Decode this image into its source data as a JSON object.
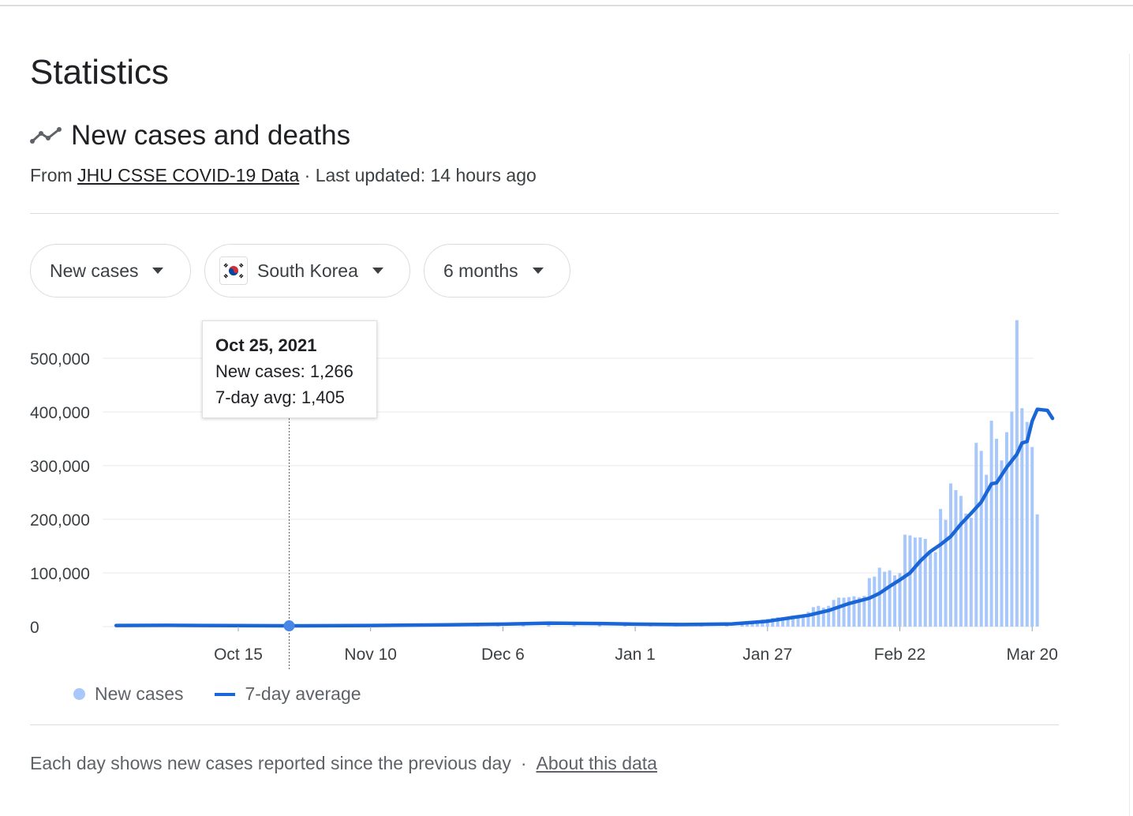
{
  "page": {
    "title": "Statistics",
    "subtitle": "New cases and deaths",
    "subtitle_icon": "trending-line-icon",
    "source_prefix": "From",
    "source_link": "JHU CSSE COVID-19 Data",
    "source_sep": "·",
    "last_updated": "Last updated: 14 hours ago"
  },
  "filters": {
    "metric": "New cases",
    "country": "South Korea",
    "country_flag_icon": "south-korea-flag-icon",
    "range": "6 months"
  },
  "tooltip": {
    "date": "Oct 25, 2021",
    "new_cases": "New cases: 1,266",
    "avg": "7-day avg: 1,405"
  },
  "legend": {
    "new_cases": "New cases",
    "avg": "7-day average"
  },
  "footer": {
    "note": "Each day shows new cases reported since the previous day",
    "sep": "·",
    "link": "About this data"
  },
  "colors": {
    "bar": "#a8c7fa",
    "line": "#1a66d6",
    "marker": "#4a86e8"
  },
  "chart_data": {
    "type": "bar",
    "x_start": "2021-09-21",
    "x_end": "2022-03-20",
    "x_ticks": [
      {
        "label": "Oct 15",
        "date": "2021-10-15"
      },
      {
        "label": "Nov 10",
        "date": "2021-11-10"
      },
      {
        "label": "Dec 6",
        "date": "2021-12-06"
      },
      {
        "label": "Jan 1",
        "date": "2022-01-01"
      },
      {
        "label": "Jan 27",
        "date": "2022-01-27"
      },
      {
        "label": "Feb 22",
        "date": "2022-02-22"
      },
      {
        "label": "Mar 20",
        "date": "2022-03-20"
      }
    ],
    "y_ticks": [
      0,
      100000,
      200000,
      300000,
      400000,
      500000
    ],
    "y_tick_labels": [
      "0",
      "100,000",
      "200,000",
      "300,000",
      "400,000",
      "500,000"
    ],
    "ylim": [
      0,
      570000
    ],
    "highlight": {
      "date": "2021-10-25",
      "new_cases": 1266,
      "avg": 1405
    },
    "series": [
      {
        "name": "New cases",
        "type": "bar",
        "points": [
          [
            "2021-12-01",
            4500
          ],
          [
            "2021-12-05",
            5100
          ],
          [
            "2021-12-10",
            6900
          ],
          [
            "2021-12-15",
            7800
          ],
          [
            "2021-12-20",
            5200
          ],
          [
            "2021-12-25",
            6200
          ],
          [
            "2021-12-30",
            5000
          ],
          [
            "2022-01-04",
            4400
          ],
          [
            "2022-01-09",
            3400
          ],
          [
            "2022-01-14",
            4500
          ],
          [
            "2022-01-19",
            5800
          ],
          [
            "2022-01-22",
            7000
          ],
          [
            "2022-01-23",
            7600
          ],
          [
            "2022-01-24",
            7500
          ],
          [
            "2022-01-25",
            8500
          ],
          [
            "2022-01-26",
            13000
          ],
          [
            "2022-01-27",
            14500
          ],
          [
            "2022-01-28",
            16100
          ],
          [
            "2022-01-29",
            17500
          ],
          [
            "2022-01-30",
            17100
          ],
          [
            "2022-01-31",
            18000
          ],
          [
            "2022-02-01",
            20300
          ],
          [
            "2022-02-02",
            20000
          ],
          [
            "2022-02-03",
            22900
          ],
          [
            "2022-02-04",
            27400
          ],
          [
            "2022-02-05",
            36300
          ],
          [
            "2022-02-06",
            38600
          ],
          [
            "2022-02-07",
            35300
          ],
          [
            "2022-02-08",
            38700
          ],
          [
            "2022-02-09",
            49600
          ],
          [
            "2022-02-10",
            54100
          ],
          [
            "2022-02-11",
            53900
          ],
          [
            "2022-02-12",
            54900
          ],
          [
            "2022-02-13",
            56400
          ],
          [
            "2022-02-14",
            54600
          ],
          [
            "2022-02-15",
            57100
          ],
          [
            "2022-02-16",
            90400
          ],
          [
            "2022-02-17",
            93100
          ],
          [
            "2022-02-18",
            109800
          ],
          [
            "2022-02-19",
            102200
          ],
          [
            "2022-02-20",
            104800
          ],
          [
            "2022-02-21",
            95400
          ],
          [
            "2022-02-22",
            99600
          ],
          [
            "2022-02-23",
            171400
          ],
          [
            "2022-02-24",
            170000
          ],
          [
            "2022-02-25",
            165900
          ],
          [
            "2022-02-26",
            166200
          ],
          [
            "2022-02-27",
            163500
          ],
          [
            "2022-02-28",
            139600
          ],
          [
            "2022-03-01",
            138900
          ],
          [
            "2022-03-02",
            219200
          ],
          [
            "2022-03-03",
            198800
          ],
          [
            "2022-03-04",
            266800
          ],
          [
            "2022-03-05",
            254300
          ],
          [
            "2022-03-06",
            243600
          ],
          [
            "2022-03-07",
            210700
          ],
          [
            "2022-03-08",
            202700
          ],
          [
            "2022-03-09",
            342400
          ],
          [
            "2022-03-10",
            327500
          ],
          [
            "2022-03-11",
            282900
          ],
          [
            "2022-03-12",
            383700
          ],
          [
            "2022-03-13",
            350100
          ],
          [
            "2022-03-14",
            309700
          ],
          [
            "2022-03-15",
            362300
          ],
          [
            "2022-03-16",
            400700
          ],
          [
            "2022-03-17",
            571000
          ],
          [
            "2022-03-18",
            407000
          ],
          [
            "2022-03-19",
            381400
          ],
          [
            "2022-03-20",
            334700
          ],
          [
            "2022-03-21",
            209200
          ]
        ]
      },
      {
        "name": "7-day average",
        "type": "line",
        "points": [
          [
            "2021-09-21",
            2000
          ],
          [
            "2021-10-01",
            2300
          ],
          [
            "2021-10-15",
            1700
          ],
          [
            "2021-10-25",
            1405
          ],
          [
            "2021-11-10",
            2100
          ],
          [
            "2021-11-25",
            3200
          ],
          [
            "2021-12-06",
            4600
          ],
          [
            "2021-12-15",
            6500
          ],
          [
            "2021-12-25",
            5800
          ],
          [
            "2022-01-01",
            4500
          ],
          [
            "2022-01-10",
            3800
          ],
          [
            "2022-01-20",
            5000
          ],
          [
            "2022-01-27",
            10000
          ],
          [
            "2022-02-01",
            17000
          ],
          [
            "2022-02-04",
            21000
          ],
          [
            "2022-02-08",
            30000
          ],
          [
            "2022-02-12",
            43000
          ],
          [
            "2022-02-16",
            53000
          ],
          [
            "2022-02-18",
            62000
          ],
          [
            "2022-02-20",
            75000
          ],
          [
            "2022-02-22",
            87000
          ],
          [
            "2022-02-24",
            100000
          ],
          [
            "2022-02-26",
            122000
          ],
          [
            "2022-02-28",
            140000
          ],
          [
            "2022-03-02",
            153000
          ],
          [
            "2022-03-04",
            168000
          ],
          [
            "2022-03-06",
            191000
          ],
          [
            "2022-03-08",
            211000
          ],
          [
            "2022-03-10",
            232000
          ],
          [
            "2022-03-12",
            266000
          ],
          [
            "2022-03-13",
            268000
          ],
          [
            "2022-03-15",
            297000
          ],
          [
            "2022-03-17",
            321000
          ],
          [
            "2022-03-18",
            342000
          ],
          [
            "2022-03-19",
            345000
          ],
          [
            "2022-03-20",
            383000
          ],
          [
            "2022-03-21",
            405000
          ],
          [
            "2022-03-22",
            404000
          ],
          [
            "2022-03-23",
            403000
          ],
          [
            "2022-03-24",
            388000
          ]
        ]
      }
    ]
  }
}
